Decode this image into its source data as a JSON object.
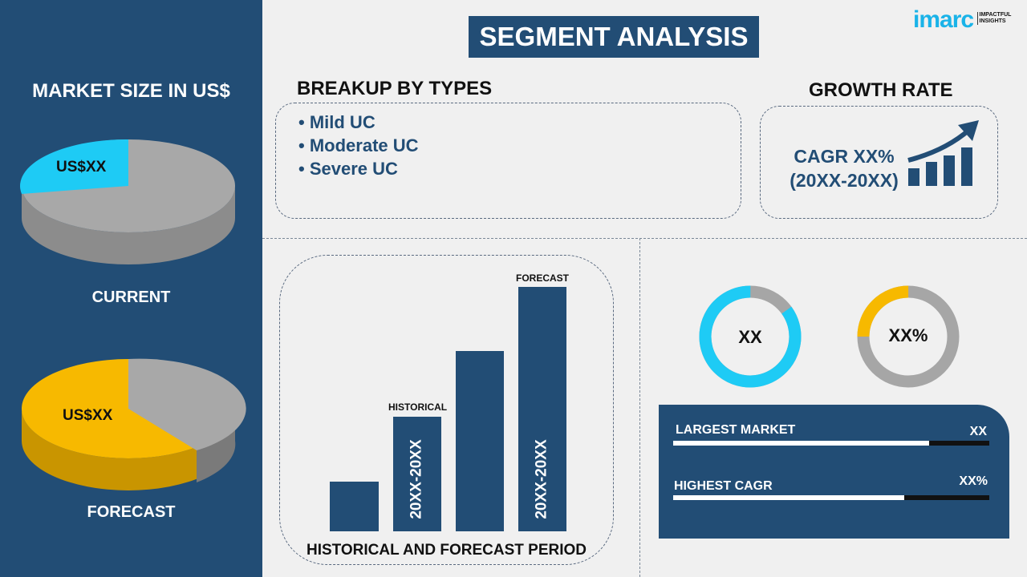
{
  "title": "SEGMENT ANALYSIS",
  "logo": {
    "brand": "imarc",
    "tagline": "IMPACTFUL INSIGHTS"
  },
  "left": {
    "heading": "MARKET SIZE IN US$",
    "current": {
      "label": "CURRENT",
      "value": "US$XX"
    },
    "forecast": {
      "label": "FORECAST",
      "value": "US$XX"
    }
  },
  "breakup": {
    "heading": "BREAKUP BY TYPES",
    "items": [
      "Mild UC",
      "Moderate UC",
      "Severe UC"
    ]
  },
  "growth": {
    "heading": "GROWTH RATE",
    "line1": "CAGR XX%",
    "line2": "(20XX-20XX)"
  },
  "period": {
    "caption": "HISTORICAL AND FORECAST PERIOD",
    "historical": "HISTORICAL",
    "forecast": "FORECAST",
    "bar_label_hist": "20XX-20XX",
    "bar_label_fore": "20XX-20XX"
  },
  "donuts": [
    {
      "label": "XX",
      "fraction": 0.85,
      "color": "#1ecbf5"
    },
    {
      "label": "XX%",
      "fraction": 0.25,
      "color": "#f7b900"
    }
  ],
  "card": {
    "rows": [
      {
        "label": "LARGEST MARKET",
        "value": "XX",
        "fill": 0.81
      },
      {
        "label": "HIGHEST CAGR",
        "value": "XX%",
        "fill": 0.73
      }
    ]
  },
  "colors": {
    "navy": "#224d75",
    "cyan": "#1ecbf5",
    "yellow": "#f7b900",
    "gray": "#a6a6a6"
  }
}
